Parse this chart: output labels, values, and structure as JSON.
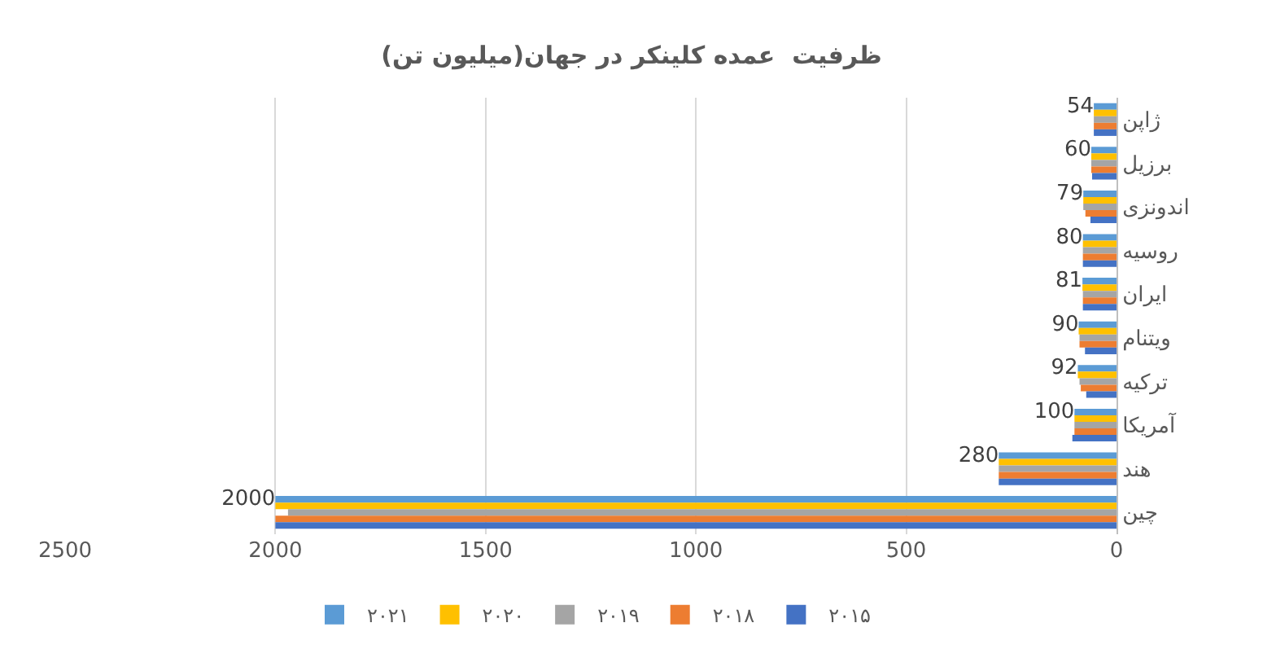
{
  "chart_data": {
    "type": "bar",
    "orientation": "horizontal",
    "title": "ظرفیت  عمده کلینکر در جهان(میلیون تن)",
    "categories": [
      "ژاپن",
      "برزیل",
      "اندونزی",
      "روسیه",
      "ایران",
      "ویتنام",
      "ترکیه",
      "آمریکا",
      "هند",
      "چین"
    ],
    "series": [
      {
        "name": "۲۰۲۱",
        "color": "#5b9bd5",
        "values": [
          54,
          60,
          79,
          80,
          81,
          90,
          92,
          100,
          280,
          2000
        ],
        "value_labels": [
          "54",
          "60",
          "79",
          "80",
          "81",
          "90",
          "92",
          "100",
          "280",
          "2000"
        ]
      },
      {
        "name": "۲۰۲۰",
        "color": "#ffc000",
        "values": [
          54,
          60,
          79,
          80,
          81,
          90,
          92,
          100,
          280,
          2000
        ]
      },
      {
        "name": "۲۰۱۹",
        "color": "#a5a5a5",
        "values": [
          54,
          60,
          79,
          80,
          80,
          88,
          88,
          100,
          280,
          1970
        ]
      },
      {
        "name": "۲۰۱۸",
        "color": "#ed7d31",
        "values": [
          54,
          60,
          74,
          80,
          80,
          88,
          85,
          100,
          280,
          2000
        ]
      },
      {
        "name": "۲۰۱۵",
        "color": "#4472c4",
        "values": [
          54,
          58,
          62,
          80,
          80,
          75,
          72,
          105,
          280,
          2000
        ]
      }
    ],
    "xlim": [
      2500,
      0
    ],
    "xticks": [
      2500,
      2000,
      1500,
      1000,
      500,
      0
    ],
    "grid": "x",
    "legend": "bottom"
  }
}
